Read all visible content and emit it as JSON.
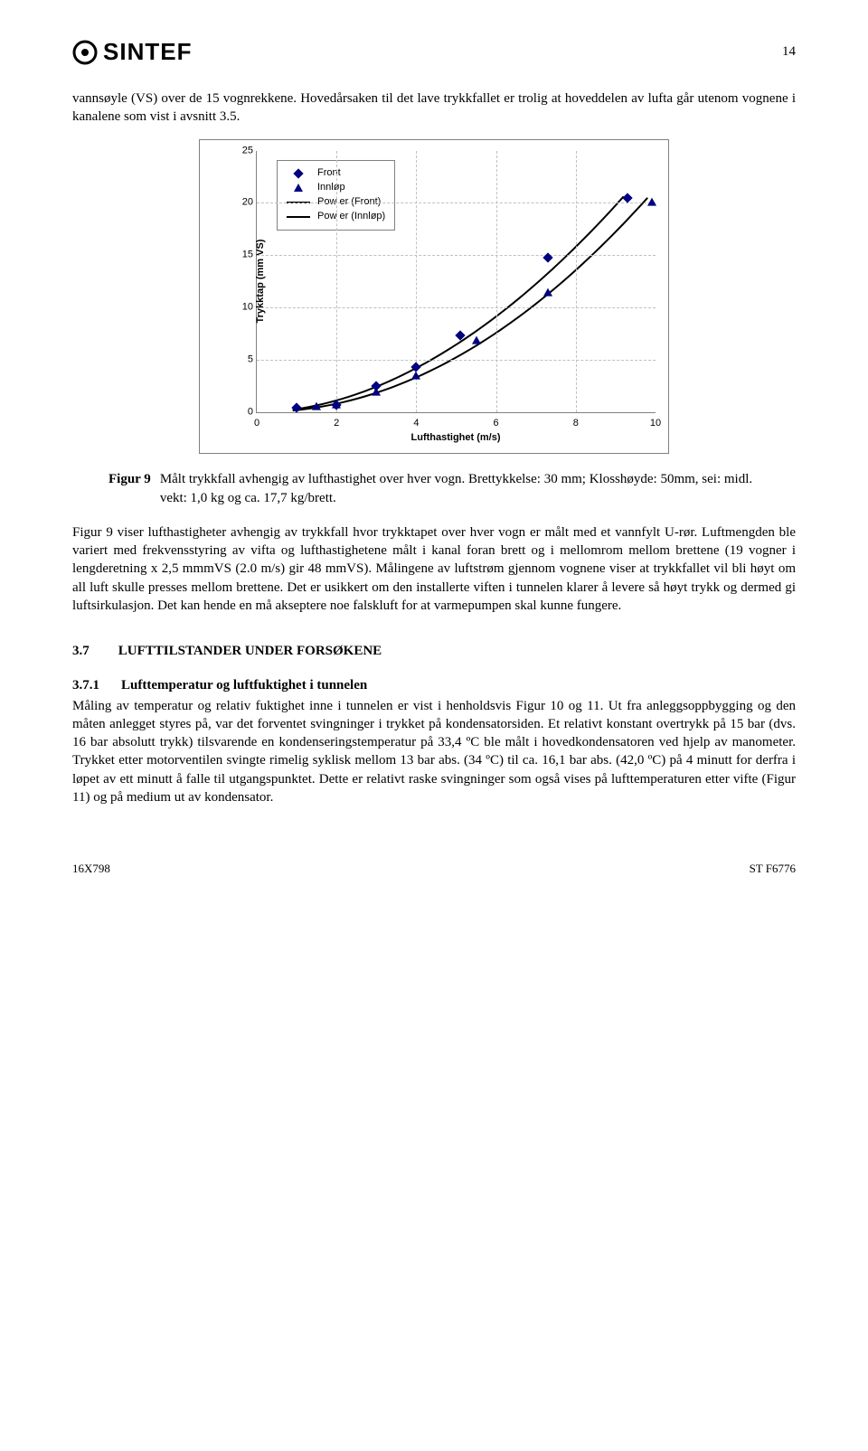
{
  "page_number": "14",
  "logo_text": "SINTEF",
  "para1": "vannsøyle (VS) over de 15 vognrekkene. Hovedårsaken til det lave trykkfallet er trolig at hoveddelen av lufta går utenom vognene i kanalene som vist i avsnitt 3.5.",
  "chart": {
    "type": "line",
    "ylabel": "Trykktap (mm VS)",
    "xlabel": "Lufthastighet (m/s)",
    "ylim": [
      0,
      25
    ],
    "xlim": [
      0,
      10
    ],
    "ytick_step": 5,
    "xtick_step": 2,
    "grid_color": "#c0c0c0",
    "axis_color": "#808080",
    "legend_border": "#808080",
    "marker_color": "#000080",
    "line_color": "#000000",
    "legend": [
      "Front",
      "Innløp",
      "Pow er (Front)",
      "Pow er (Innløp)"
    ],
    "front_points": [
      {
        "x": 1.0,
        "y": 0.4
      },
      {
        "x": 2.0,
        "y": 0.7
      },
      {
        "x": 3.0,
        "y": 2.5
      },
      {
        "x": 4.0,
        "y": 4.3
      },
      {
        "x": 5.1,
        "y": 7.3
      },
      {
        "x": 7.3,
        "y": 14.8
      },
      {
        "x": 9.3,
        "y": 20.5
      }
    ],
    "innlop_points": [
      {
        "x": 1.5,
        "y": 0.5
      },
      {
        "x": 2.0,
        "y": 0.7
      },
      {
        "x": 3.0,
        "y": 1.9
      },
      {
        "x": 4.0,
        "y": 3.4
      },
      {
        "x": 5.5,
        "y": 6.8
      },
      {
        "x": 7.3,
        "y": 11.4
      },
      {
        "x": 9.9,
        "y": 20.0
      }
    ]
  },
  "figure_label": "Figur 9",
  "figure_caption": "Målt trykkfall avhengig av lufthastighet over hver vogn. Brettykkelse: 30 mm; Klosshøyde: 50mm, sei: midl. vekt: 1,0 kg og ca. 17,7 kg/brett.",
  "para2": "Figur 9 viser lufthastigheter avhengig av trykkfall hvor trykktapet over hver vogn er målt med et vannfylt U-rør. Luftmengden ble variert med frekvensstyring av vifta og lufthastighetene målt i kanal foran brett og i mellomrom mellom brettene (19 vogner i lengderetning x 2,5 mmmVS (2.0 m/s) gir 48 mmVS). Målingene av luftstrøm gjennom vognene viser at trykkfallet vil bli høyt om all luft skulle presses mellom brettene. Det er usikkert om den installerte viften i tunnelen klarer å levere så høyt trykk og dermed gi luftsirkulasjon. Det kan hende en må akseptere noe falskluft for at varmepumpen skal kunne fungere.",
  "section_num": "3.7",
  "section_title": "LUFTTILSTANDER UNDER FORSØKENE",
  "subsec_num": "3.7.1",
  "subsec_title": "Lufttemperatur og luftfuktighet i tunnelen",
  "para3": "Måling av temperatur og relativ fuktighet inne i tunnelen er vist i henholdsvis Figur 10 og 11. Ut fra anleggsoppbygging og den måten anlegget styres på, var det forventet svingninger i trykket på kondensatorsiden. Et relativt konstant overtrykk på 15 bar (dvs. 16 bar absolutt trykk) tilsvarende en kondenseringstemperatur på 33,4 ºC ble målt i hovedkondensatoren ved hjelp av manometer. Trykket etter motorventilen svingte rimelig syklisk mellom 13 bar abs. (34 ºC) til ca. 16,1 bar abs. (42,0 ºC) på 4 minutt for derfra i løpet av ett minutt å falle til utgangspunktet. Dette er relativt raske svingninger som også vises på lufttemperaturen etter vifte (Figur 11) og på medium ut av kondensator.",
  "footer_left": "16X798",
  "footer_right": "ST F6776"
}
